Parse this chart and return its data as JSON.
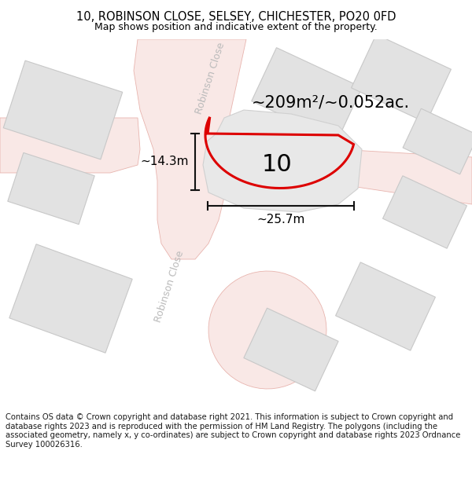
{
  "title": "10, ROBINSON CLOSE, SELSEY, CHICHESTER, PO20 0FD",
  "subtitle": "Map shows position and indicative extent of the property.",
  "footer": "Contains OS data © Crown copyright and database right 2021. This information is subject to Crown copyright and database rights 2023 and is reproduced with the permission of HM Land Registry. The polygons (including the associated geometry, namely x, y co-ordinates) are subject to Crown copyright and database rights 2023 Ordnance Survey 100026316.",
  "area_label": "~209m²/~0.052ac.",
  "width_label": "~25.7m",
  "height_label": "~14.3m",
  "plot_number": "10",
  "bg_color": "#f7f7f7",
  "road_fill": "#f9e8e6",
  "road_edge": "#e8b4ae",
  "building_fill": "#e2e2e2",
  "building_edge": "#c8c8c8",
  "plot_edge": "#dd0000",
  "dim_color": "#111111",
  "road_label_color": "#bbbbbb",
  "title_fontsize": 10.5,
  "subtitle_fontsize": 9,
  "footer_fontsize": 7.2,
  "area_fontsize": 15,
  "number_fontsize": 22,
  "dim_fontsize": 11,
  "road_label_fontsize": 9
}
